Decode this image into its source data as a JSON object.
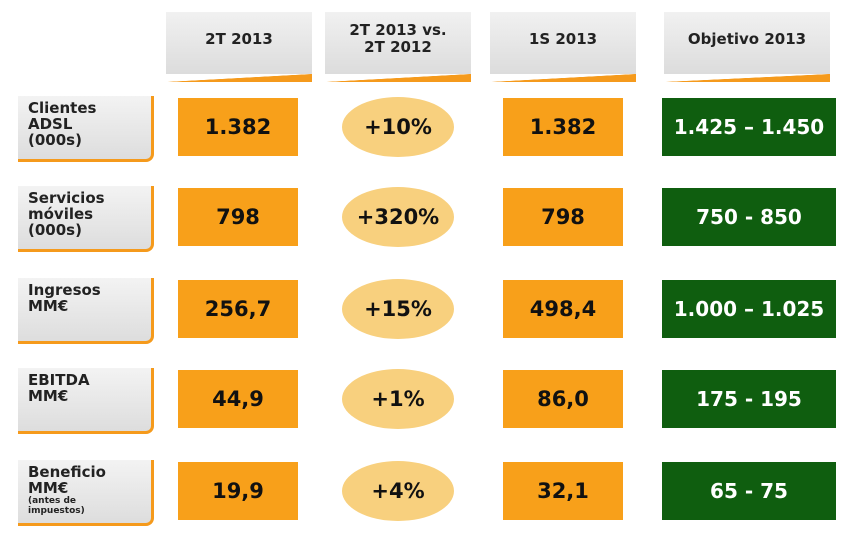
{
  "headers": [
    "2T 2013",
    "2T 2013 vs.\n2T 2012",
    "1S 2013",
    "Objetivo 2013"
  ],
  "rows": [
    {
      "label": "Clientes\nADSL\n(000s)",
      "note": "",
      "q": "1.382",
      "growth": "+10%",
      "half": "1.382",
      "target": "1.425 – 1.450"
    },
    {
      "label": "Servicios\nmóviles\n(000s)",
      "note": "",
      "q": "798",
      "growth": "+320%",
      "half": "798",
      "target": "750 - 850"
    },
    {
      "label": "Ingresos\nMM€",
      "note": "",
      "q": "256,7",
      "growth": "+15%",
      "half": "498,4",
      "target": "1.000 – 1.025"
    },
    {
      "label": "EBITDA\nMM€",
      "note": "",
      "q": "44,9",
      "growth": "+1%",
      "half": "86,0",
      "target": "175 - 195"
    },
    {
      "label": "Beneficio\nMM€",
      "note": "(antes de\nimpuestos)",
      "q": "19,9",
      "growth": "+4%",
      "half": "32,1",
      "target": "65 - 75"
    }
  ],
  "colors": {
    "orange": "#f8a01a",
    "oval": "#f8d07e",
    "green": "#0f5e0f",
    "accent_line": "#f59a1c"
  }
}
